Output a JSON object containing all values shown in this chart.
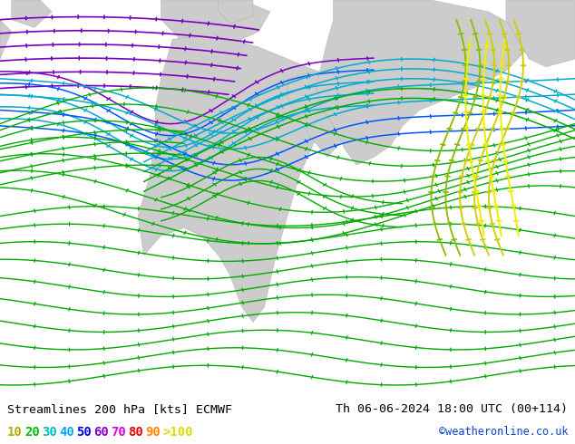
{
  "title_left": "Streamlines 200 hPa [kts] ECMWF",
  "title_right": "Th 06-06-2024 18:00 UTC (00+114)",
  "credit": "©weatheronline.co.uk",
  "bg_color": "#b8e890",
  "land_color": "#cccccc",
  "bottom_bar_color": "#ffffff",
  "title_color": "#000000",
  "font_size_title": 9.5,
  "font_size_legend": 10,
  "legend_labels": [
    "10",
    "20",
    "30",
    "40",
    "50",
    "60",
    "70",
    "80",
    "90",
    ">100"
  ],
  "legend_colors": [
    "#b0b000",
    "#00bb00",
    "#00bbbb",
    "#00aaff",
    "#0000ee",
    "#8800cc",
    "#dd00dd",
    "#ee0000",
    "#ff8800",
    "#dddd00"
  ],
  "streamline_colors": {
    "purple": "#7700bb",
    "blue": "#0055ff",
    "cyan": "#00aacc",
    "green": "#00aa00",
    "lime": "#88bb00",
    "yellow": "#cccc00",
    "yellow2": "#eeee00"
  }
}
